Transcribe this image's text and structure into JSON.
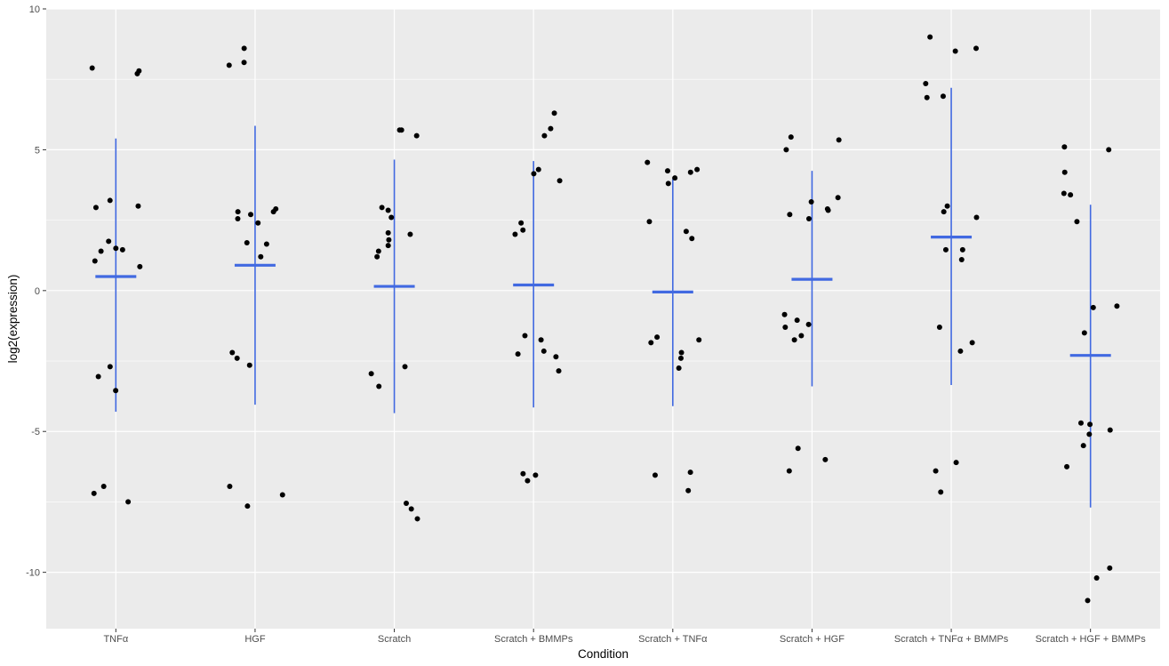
{
  "chart_data": {
    "type": "scatter",
    "title": "",
    "xlabel": "Condition",
    "ylabel": "log2(expression)",
    "ylim": [
      -12,
      10
    ],
    "y_ticks": [
      10,
      5,
      0,
      -5,
      -10
    ],
    "y_tick_labels": [
      "10",
      "5",
      "0",
      "-5",
      "-10"
    ],
    "grid": true,
    "legend": "none",
    "categories": [
      "TNFα",
      "HGF",
      "Scratch",
      "Scratch + BMMPs",
      "Scratch + TNFα",
      "Scratch + HGF",
      "Scratch + TNFα + BMMPs",
      "Scratch + HGF + BMMPs"
    ],
    "points": [
      {
        "category": "TNFα",
        "values": [
          7.7,
          7.8,
          7.9,
          3.2,
          3.0,
          2.95,
          1.75,
          1.5,
          1.45,
          1.4,
          1.05,
          0.85,
          -2.7,
          -3.05,
          -3.55,
          -6.95,
          -7.2,
          -7.5
        ]
      },
      {
        "category": "HGF",
        "values": [
          8.6,
          8.1,
          8.0,
          2.9,
          2.8,
          2.8,
          2.7,
          2.55,
          2.4,
          1.7,
          1.65,
          1.2,
          -2.2,
          -2.4,
          -2.65,
          -6.95,
          -7.25,
          -7.65
        ]
      },
      {
        "category": "Scratch",
        "values": [
          5.7,
          5.7,
          5.5,
          2.95,
          2.85,
          2.6,
          2.05,
          2.0,
          1.8,
          1.6,
          1.4,
          1.2,
          -2.7,
          -2.95,
          -3.4,
          -7.55,
          -7.75,
          -8.1
        ]
      },
      {
        "category": "Scratch + BMMPs",
        "values": [
          6.3,
          5.75,
          5.5,
          4.3,
          4.15,
          3.9,
          2.4,
          2.15,
          2.0,
          -1.6,
          -1.75,
          -2.15,
          -2.25,
          -2.35,
          -2.85,
          -6.5,
          -6.55,
          -6.75
        ]
      },
      {
        "category": "Scratch + TNFα",
        "values": [
          4.55,
          4.3,
          4.25,
          4.2,
          4.0,
          3.8,
          2.45,
          2.1,
          1.85,
          -1.65,
          -1.75,
          -1.85,
          -2.2,
          -2.4,
          -2.75,
          -6.45,
          -6.55,
          -7.1
        ]
      },
      {
        "category": "Scratch + HGF",
        "values": [
          5.45,
          5.35,
          5.0,
          3.3,
          3.15,
          2.9,
          2.85,
          2.7,
          2.55,
          -0.85,
          -1.05,
          -1.2,
          -1.3,
          -1.6,
          -1.75,
          -5.6,
          -6.0,
          -6.4
        ]
      },
      {
        "category": "Scratch + TNFα + BMMPs",
        "values": [
          9.0,
          8.6,
          8.5,
          7.35,
          6.9,
          6.85,
          3.0,
          2.8,
          2.6,
          1.45,
          1.45,
          1.1,
          -1.3,
          -1.85,
          -2.15,
          -6.1,
          -6.4,
          -7.15
        ]
      },
      {
        "category": "Scratch + HGF + BMMPs",
        "values": [
          5.1,
          5.0,
          4.2,
          3.45,
          3.4,
          2.45,
          -0.55,
          -0.6,
          -1.5,
          -4.7,
          -4.75,
          -4.95,
          -5.1,
          -5.5,
          -6.25,
          -9.85,
          -10.2,
          -11.0
        ]
      }
    ],
    "summary": [
      {
        "category": "TNFα",
        "mean": 0.5,
        "lower": -4.3,
        "upper": 5.4
      },
      {
        "category": "HGF",
        "mean": 0.9,
        "lower": -4.05,
        "upper": 5.85
      },
      {
        "category": "Scratch",
        "mean": 0.15,
        "lower": -4.35,
        "upper": 4.65
      },
      {
        "category": "Scratch + BMMPs",
        "mean": 0.2,
        "lower": -4.15,
        "upper": 4.6
      },
      {
        "category": "Scratch + TNFα",
        "mean": -0.05,
        "lower": -4.1,
        "upper": 3.95
      },
      {
        "category": "Scratch + HGF",
        "mean": 0.4,
        "lower": -3.4,
        "upper": 4.25
      },
      {
        "category": "Scratch + TNFα + BMMPs",
        "mean": 1.9,
        "lower": -3.35,
        "upper": 7.2
      },
      {
        "category": "Scratch + HGF + BMMPs",
        "mean": -2.3,
        "lower": -7.7,
        "upper": 3.05
      }
    ],
    "colors": {
      "panel_background": "#ebebeb",
      "grid": "#ffffff",
      "points": "#000000",
      "summary": "#4169e1",
      "tick_text": "#4d4d4d",
      "axis_title": "#000000"
    }
  }
}
